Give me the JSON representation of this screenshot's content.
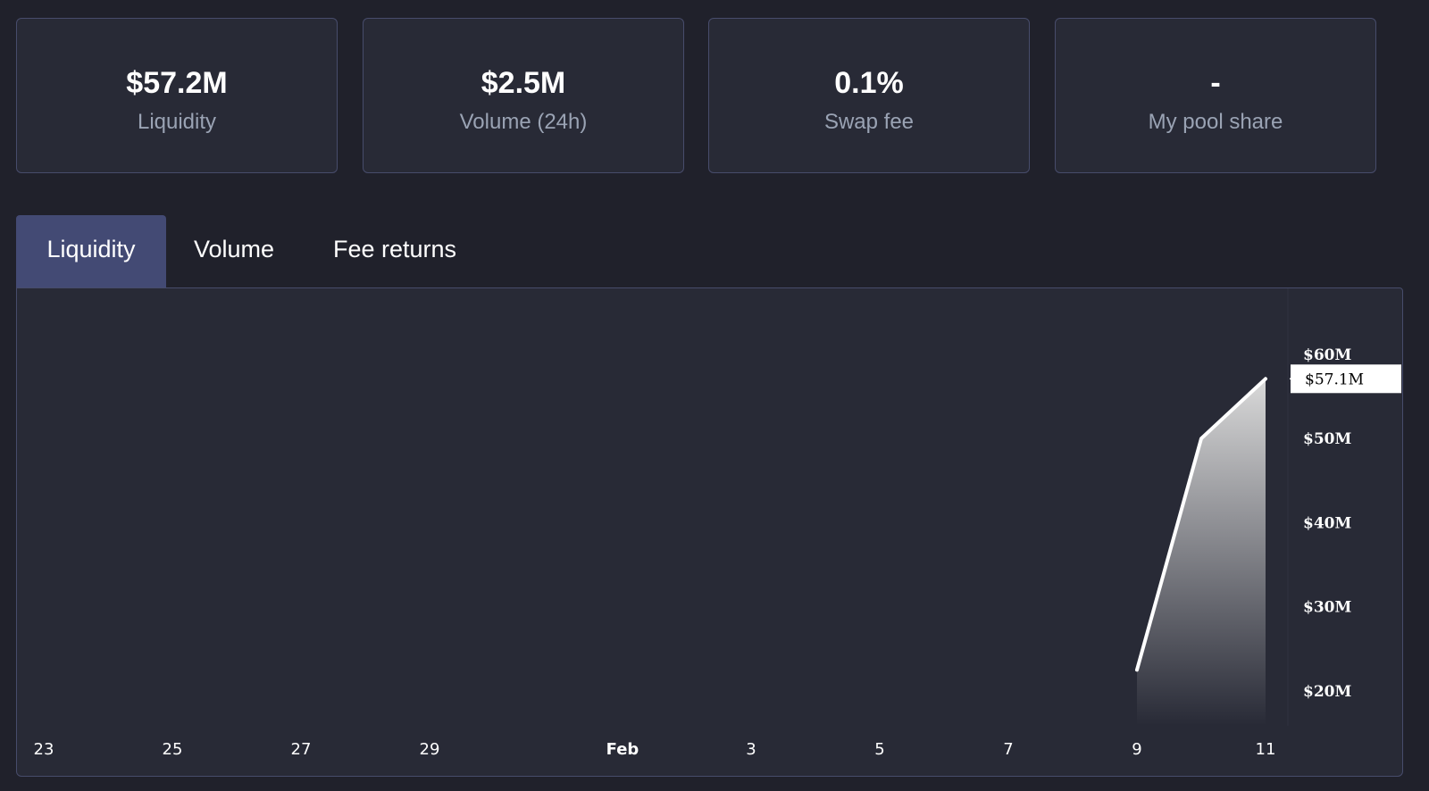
{
  "stats": [
    {
      "value": "$57.2M",
      "label": "Liquidity"
    },
    {
      "value": "$2.5M",
      "label": "Volume (24h)"
    },
    {
      "value": "0.1%",
      "label": "Swap fee"
    },
    {
      "value": "-",
      "label": "My pool share"
    }
  ],
  "tabs": [
    {
      "label": "Liquidity",
      "active": true
    },
    {
      "label": "Volume",
      "active": false
    },
    {
      "label": "Fee returns",
      "active": false
    }
  ],
  "chart_data": {
    "type": "area",
    "title": "",
    "xlabel": "",
    "ylabel": "",
    "x_tick_labels": [
      "23",
      "25",
      "27",
      "29",
      "Feb",
      "3",
      "5",
      "7",
      "9",
      "11"
    ],
    "x_tick_bold": [
      false,
      false,
      false,
      false,
      true,
      false,
      false,
      false,
      false,
      false
    ],
    "y_tick_labels": [
      "$60M",
      "$50M",
      "$40M",
      "$30M",
      "$20M"
    ],
    "y_tick_values": [
      60,
      50,
      40,
      30,
      20
    ],
    "ylim": [
      15,
      67
    ],
    "series": [
      {
        "x": [
          "9",
          "10",
          "11"
        ],
        "values": [
          22.5,
          50.0,
          57.1
        ]
      }
    ],
    "last_value_label": "$57.1M",
    "colors": {
      "line": "#ffffff",
      "area_top": "#d9d9d9",
      "area_bottom": "#282a36",
      "background": "#282a36",
      "label_bg": "#ffffff"
    }
  }
}
